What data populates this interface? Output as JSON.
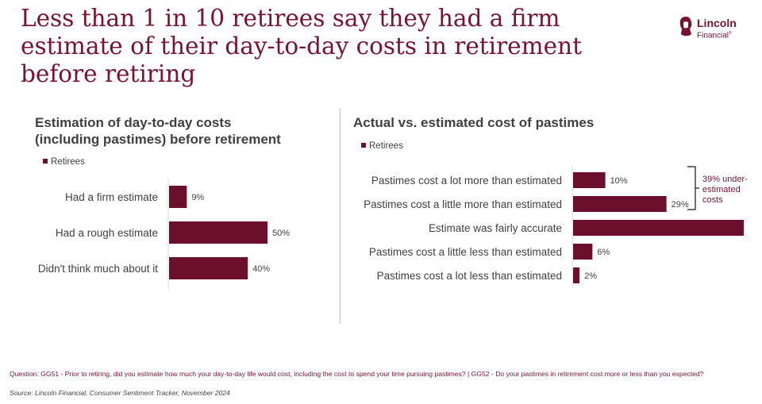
{
  "headline": "Less than 1 in 10 retirees say they had a firm estimate of their day-to-day costs in retirement before retiring",
  "logo": {
    "word": "Lincoln",
    "sub": "Financial",
    "tm": "®"
  },
  "colors": {
    "bar": "#6b0f2c",
    "headline": "#7a1231"
  },
  "chart_data": [
    {
      "type": "bar",
      "orientation": "horizontal",
      "title_line1": "Estimation of day-to-day costs",
      "title_line2": "(including pastimes) before retirement",
      "legend": "Retirees",
      "categories": [
        "Had a firm estimate",
        "Had a rough estimate",
        "Didn't think much about it"
      ],
      "values": [
        9,
        50,
        40
      ],
      "labels": [
        "9%",
        "50%",
        "40%"
      ],
      "unit": "%",
      "xlim": [
        0,
        50
      ]
    },
    {
      "type": "bar",
      "orientation": "horizontal",
      "title": "Actual vs. estimated cost of pastimes",
      "legend": "Retirees",
      "categories": [
        "Pastimes cost a lot more than estimated",
        "Pastimes cost a little more than estimated",
        "Estimate was fairly accurate",
        "Pastimes cost a little less than estimated",
        "Pastimes cost a lot less than estimated"
      ],
      "values": [
        10,
        29,
        53,
        6,
        2
      ],
      "labels": [
        "10%",
        "29%",
        "",
        "6%",
        "2%"
      ],
      "unit": "%",
      "xlim": [
        0,
        53
      ],
      "annotation": "39% under-estimated costs"
    }
  ],
  "footnote": {
    "question": "Question: GG51 - Prior to retiring, did you estimate how much your day-to-day life would cost, including the cost to spend your time pursuing pastimes? | GG52 - Do your pastimes in retirement cost more or less than you expected?",
    "source": "Source: Lincoln Financial, Consumer Sentiment Tracker, November 2024"
  }
}
